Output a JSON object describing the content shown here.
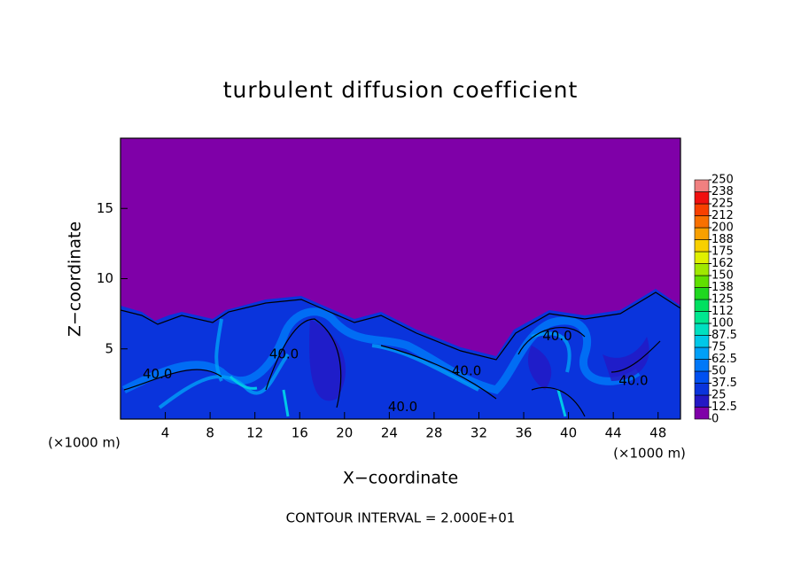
{
  "chart_data": {
    "type": "contour",
    "title": "turbulent diffusion coefficient",
    "xlabel": "X−coordinate",
    "ylabel": "Z−coordinate",
    "x_unit_label": "(×1000 m)",
    "y_unit_label": "(×1000 m)",
    "annotation": "CONTOUR INTERVAL = 2.000E+01",
    "xlim": [
      0,
      50
    ],
    "xticks": [
      4,
      8,
      12,
      16,
      20,
      24,
      28,
      32,
      36,
      40,
      44,
      48
    ],
    "ylim": [
      0,
      20
    ],
    "yticks": [
      5,
      10,
      15
    ],
    "colorbar": {
      "ticks": [
        0,
        12.5,
        25,
        37.5,
        50,
        62.5,
        75,
        87.5,
        100,
        {
          "value": 112.5,
          "label": "112"
        },
        125,
        {
          "value": 137.5,
          "label": "138"
        },
        150,
        {
          "value": 162.5,
          "label": "162"
        },
        175,
        {
          "value": 187.5,
          "label": "188"
        },
        200,
        {
          "value": 212.5,
          "label": "212"
        },
        225,
        {
          "value": 237.5,
          "label": "238"
        },
        250
      ],
      "colors": [
        "#7f00a8",
        "#2418c4",
        "#0a34dc",
        "#0050f0",
        "#0078f8",
        "#00a0f8",
        "#00c8e8",
        "#00e0c0",
        "#00e890",
        "#00e060",
        "#20d820",
        "#60e000",
        "#a0e800",
        "#e0f000",
        "#f8d000",
        "#f8a000",
        "#f87000",
        "#f84000",
        "#f01010",
        "#f08080"
      ]
    },
    "contour_labels": [
      {
        "text": "40.0",
        "x": 3.3,
        "y": 3.2
      },
      {
        "text": "40.0",
        "x": 14.6,
        "y": 4.6
      },
      {
        "text": "40.0",
        "x": 25.2,
        "y": 0.85
      },
      {
        "text": "40.0",
        "x": 30.9,
        "y": 3.4
      },
      {
        "text": "40.0",
        "x": 39.0,
        "y": 5.9
      },
      {
        "text": "40.0",
        "x": 45.8,
        "y": 2.7
      }
    ]
  }
}
